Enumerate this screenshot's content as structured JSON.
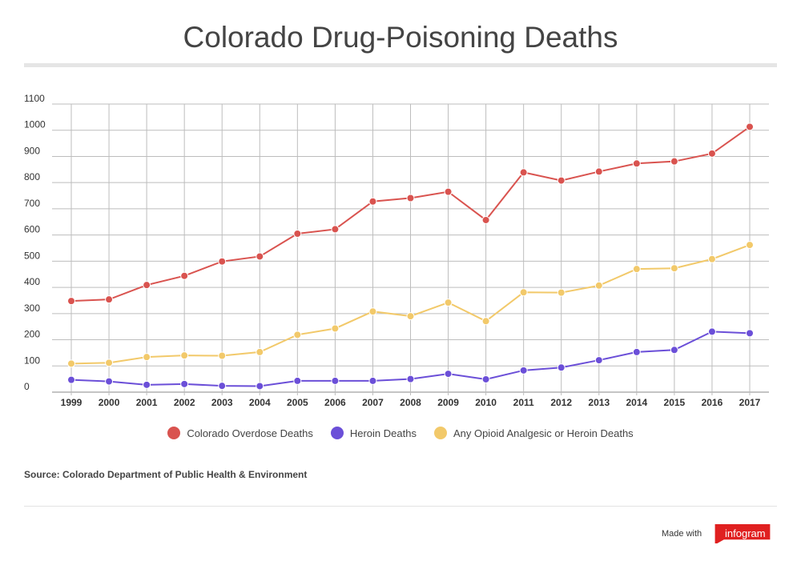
{
  "title": "Colorado Drug-Poisoning Deaths",
  "source": "Source: Colorado Department of Public Health & Environment",
  "footer": {
    "made_with": "Made with",
    "brand": "infogram"
  },
  "colors": {
    "overdose": "#d9534f",
    "heroin": "#6b4fd8",
    "opioid": "#f2c96a",
    "brand": "#e02020"
  },
  "chart_data": {
    "type": "line",
    "title": "Colorado Drug-Poisoning Deaths",
    "xlabel": "",
    "ylabel": "",
    "ylim": [
      0,
      1100
    ],
    "yticks": [
      0,
      100,
      200,
      300,
      400,
      500,
      600,
      700,
      800,
      900,
      1000,
      1100
    ],
    "grid": true,
    "legend_position": "bottom",
    "categories": [
      "1999",
      "2000",
      "2001",
      "2002",
      "2003",
      "2004",
      "2005",
      "2006",
      "2007",
      "2008",
      "2009",
      "2010",
      "2011",
      "2012",
      "2013",
      "2014",
      "2015",
      "2016",
      "2017"
    ],
    "series": [
      {
        "name": "Colorado Overdose Deaths",
        "color": "#d9534f",
        "values": [
          348,
          354,
          409,
          444,
          499,
          518,
          605,
          622,
          728,
          741,
          765,
          657,
          839,
          808,
          842,
          873,
          881,
          911,
          1013
        ]
      },
      {
        "name": "Heroin Deaths",
        "color": "#6b4fd8",
        "values": [
          47,
          41,
          28,
          31,
          24,
          23,
          43,
          43,
          43,
          50,
          70,
          49,
          83,
          94,
          122,
          153,
          161,
          231,
          225
        ]
      },
      {
        "name": "Any Opioid Analgesic or Heroin Deaths",
        "color": "#f2c96a",
        "values": [
          109,
          112,
          134,
          140,
          139,
          153,
          219,
          243,
          308,
          290,
          342,
          271,
          381,
          380,
          407,
          470,
          473,
          508,
          562
        ]
      }
    ]
  }
}
